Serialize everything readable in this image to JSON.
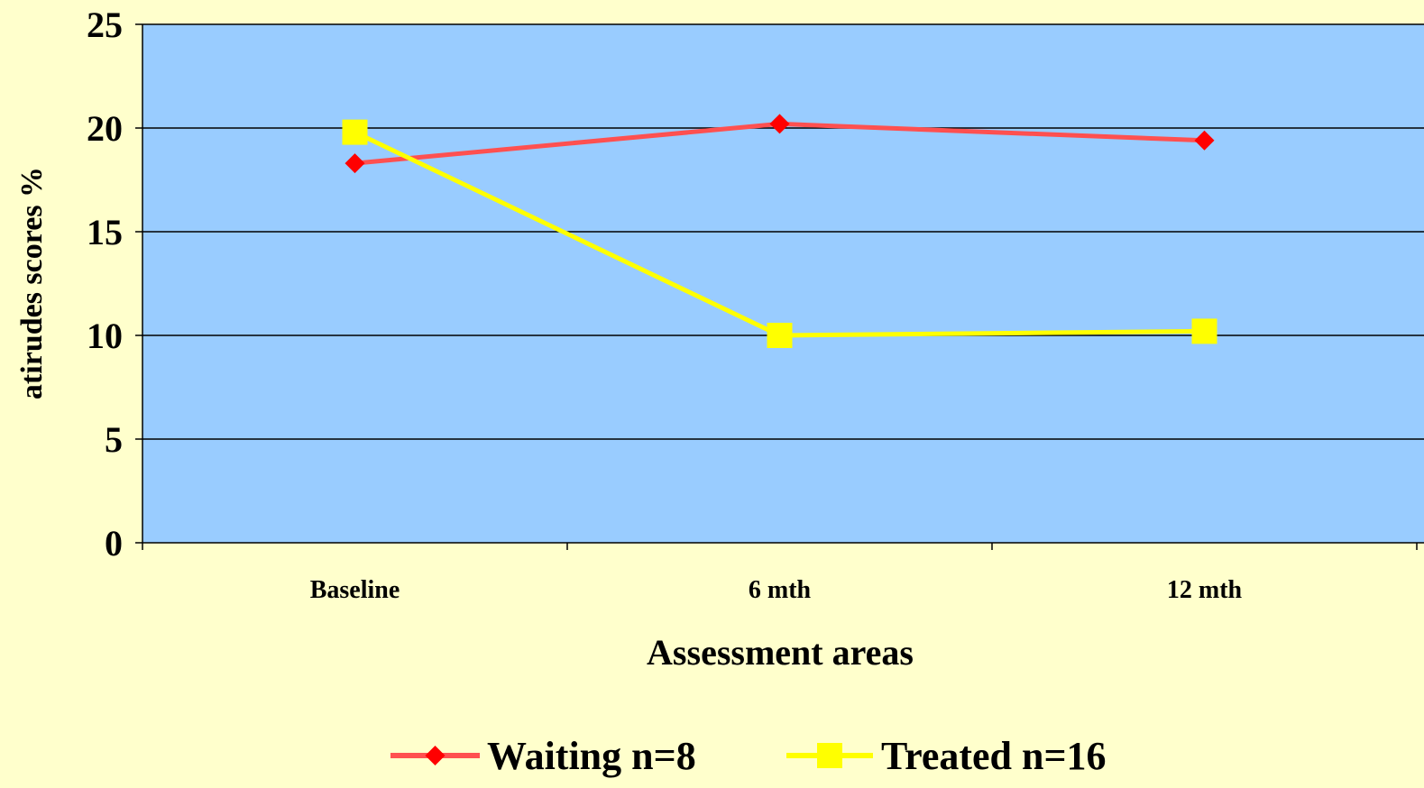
{
  "chart_data": {
    "type": "line",
    "title": "",
    "xlabel": "Assessment areas",
    "ylabel": "atirudes scores %",
    "categories": [
      "Baseline",
      "6 mth",
      "12 mth"
    ],
    "ylim": [
      0,
      25
    ],
    "yticks": [
      0,
      5,
      10,
      15,
      20,
      25
    ],
    "grid": true,
    "legend_position": "bottom",
    "plot_background": "#99ccff",
    "page_background": "#ffffcc",
    "series": [
      {
        "name": "Waiting n=8",
        "values": [
          18.3,
          20.2,
          19.4
        ],
        "color": "#ff5050",
        "marker": "diamond",
        "marker_color": "#ff0000"
      },
      {
        "name": "Treated n=16",
        "values": [
          19.8,
          10.0,
          10.2
        ],
        "color": "#ffff00",
        "marker": "square",
        "marker_color": "#ffff00"
      }
    ]
  }
}
